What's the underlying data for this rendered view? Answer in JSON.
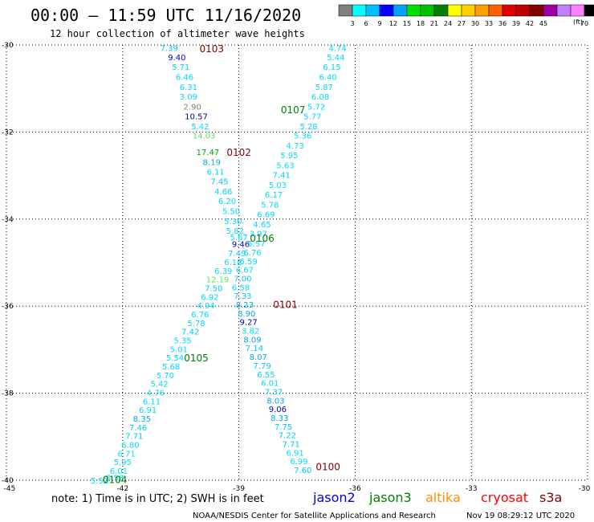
{
  "header": {
    "title": "00:00 – 11:59 UTC 11/16/2020",
    "subtitle": "12 hour collection of altimeter wave heights"
  },
  "colorbar": {
    "unit": "(ft)",
    "colors": [
      "#808080",
      "#00ffff",
      "#00c0ff",
      "#0000ff",
      "#00a0ff",
      "#00e000",
      "#00c000",
      "#008000",
      "#ffff00",
      "#ffd000",
      "#ffa000",
      "#ff6000",
      "#e00000",
      "#c00000",
      "#800000",
      "#a000a0",
      "#c080ff",
      "#ff80ff",
      "#000000"
    ],
    "labels": [
      "3",
      "6",
      "9",
      "12",
      "15",
      "18",
      "21",
      "24",
      "27",
      "30",
      "33",
      "36",
      "39",
      "42",
      "45",
      "70"
    ]
  },
  "axes": {
    "x_ticks": [
      "-45",
      "-42",
      "-39",
      "-36",
      "-33",
      "-30"
    ],
    "y_ticks": [
      "-30",
      "-32",
      "-34",
      "-36",
      "-38",
      "-40"
    ]
  },
  "chart_data": {
    "type": "scatter",
    "xlim": [
      -45,
      -30
    ],
    "ylim": [
      -40,
      -30
    ],
    "grid": true,
    "tracks": [
      {
        "label": "0103",
        "lon": -39.7,
        "lat": -30.07
      },
      {
        "label": "0102",
        "lon": -39.0,
        "lat": -32.45
      },
      {
        "label": "0107",
        "lon": -37.6,
        "lat": -31.48
      },
      {
        "label": "0106",
        "lon": -38.4,
        "lat": -34.43
      },
      {
        "label": "0101",
        "lon": -37.8,
        "lat": -35.95
      },
      {
        "label": "0105",
        "lon": -40.1,
        "lat": -37.18
      },
      {
        "label": "0104",
        "lon": -42.2,
        "lat": -39.97
      },
      {
        "label": "0100",
        "lon": -36.7,
        "lat": -39.68
      }
    ],
    "points": [
      {
        "v": "7.39",
        "lon": -40.8,
        "lat": -30.06,
        "c": "#00c8ff"
      },
      {
        "v": "9.40",
        "lon": -40.6,
        "lat": -30.28,
        "c": "#0000c0"
      },
      {
        "v": "5.71",
        "lon": -40.5,
        "lat": -30.5,
        "c": "#00d8ff"
      },
      {
        "v": "6.46",
        "lon": -40.4,
        "lat": -30.73,
        "c": "#00d8ff"
      },
      {
        "v": "6.31",
        "lon": -40.3,
        "lat": -30.96,
        "c": "#00d8ff"
      },
      {
        "v": "3.09",
        "lon": -40.3,
        "lat": -31.18,
        "c": "#00d8ff"
      },
      {
        "v": "2.90",
        "lon": -40.2,
        "lat": -31.41,
        "c": "#808080"
      },
      {
        "v": "10.57",
        "lon": -40.1,
        "lat": -31.63,
        "c": "#0000a0"
      },
      {
        "v": "5.42",
        "lon": -40.0,
        "lat": -31.86,
        "c": "#00d8ff"
      },
      {
        "v": "14.03",
        "lon": -39.9,
        "lat": -32.08,
        "c": "#60e060"
      },
      {
        "v": "17.47",
        "lon": -39.8,
        "lat": -32.45,
        "c": "#00a000"
      },
      {
        "v": "8.19",
        "lon": -39.7,
        "lat": -32.68,
        "c": "#00a8e0"
      },
      {
        "v": "6.11",
        "lon": -39.6,
        "lat": -32.91,
        "c": "#00d8ff"
      },
      {
        "v": "7.45",
        "lon": -39.5,
        "lat": -33.13,
        "c": "#00c8ff"
      },
      {
        "v": "4.66",
        "lon": -39.4,
        "lat": -33.36,
        "c": "#00d8ff"
      },
      {
        "v": "6.20",
        "lon": -39.3,
        "lat": -33.58,
        "c": "#00d8ff"
      },
      {
        "v": "5.50",
        "lon": -39.2,
        "lat": -33.81,
        "c": "#00d8ff"
      },
      {
        "v": "5.30",
        "lon": -39.15,
        "lat": -34.04,
        "c": "#00d8ff"
      },
      {
        "v": "5.82",
        "lon": -39.1,
        "lat": -34.26,
        "c": "#00d8ff"
      },
      {
        "v": "5.67",
        "lon": -39.0,
        "lat": -34.41,
        "c": "#00d8ff"
      },
      {
        "v": "9.46",
        "lon": -38.95,
        "lat": -34.57,
        "c": "#0000c0"
      },
      {
        "v": "7.49",
        "lon": -39.05,
        "lat": -34.78,
        "c": "#00c8ff"
      },
      {
        "v": "6.18",
        "lon": -39.15,
        "lat": -34.98,
        "c": "#00d8ff"
      },
      {
        "v": "6.39",
        "lon": -39.4,
        "lat": -35.18,
        "c": "#00d8ff"
      },
      {
        "v": "12.19",
        "lon": -39.55,
        "lat": -35.38,
        "c": "#60e060"
      },
      {
        "v": "7.50",
        "lon": -39.65,
        "lat": -35.58,
        "c": "#00c8ff"
      },
      {
        "v": "6.92",
        "lon": -39.75,
        "lat": -35.78,
        "c": "#00d8ff"
      },
      {
        "v": "4.94",
        "lon": -39.85,
        "lat": -35.98,
        "c": "#00d8ff"
      },
      {
        "v": "6.76",
        "lon": -40.0,
        "lat": -36.18,
        "c": "#00d8ff"
      },
      {
        "v": "5.78",
        "lon": -40.1,
        "lat": -36.38,
        "c": "#00d8ff"
      },
      {
        "v": "7.42",
        "lon": -40.25,
        "lat": -36.58,
        "c": "#00c8ff"
      },
      {
        "v": "5.35",
        "lon": -40.45,
        "lat": -36.78,
        "c": "#00d8ff"
      },
      {
        "v": "5.01",
        "lon": -40.55,
        "lat": -36.98,
        "c": "#00d8ff"
      },
      {
        "v": "5.54",
        "lon": -40.65,
        "lat": -37.18,
        "c": "#00d8ff"
      },
      {
        "v": "5.68",
        "lon": -40.75,
        "lat": -37.38,
        "c": "#00d8ff"
      },
      {
        "v": "5.70",
        "lon": -40.9,
        "lat": -37.58,
        "c": "#00d8ff"
      },
      {
        "v": "5.42",
        "lon": -41.05,
        "lat": -37.78,
        "c": "#00d8ff"
      },
      {
        "v": "4.76",
        "lon": -41.15,
        "lat": -37.98,
        "c": "#00d8ff"
      },
      {
        "v": "6.11",
        "lon": -41.25,
        "lat": -38.18,
        "c": "#00d8ff"
      },
      {
        "v": "6.91",
        "lon": -41.35,
        "lat": -38.38,
        "c": "#00d8ff"
      },
      {
        "v": "8.35",
        "lon": -41.5,
        "lat": -38.58,
        "c": "#00a8e0"
      },
      {
        "v": "7.46",
        "lon": -41.6,
        "lat": -38.78,
        "c": "#00c8ff"
      },
      {
        "v": "7.71",
        "lon": -41.7,
        "lat": -38.98,
        "c": "#00c8ff"
      },
      {
        "v": "6.80",
        "lon": -41.8,
        "lat": -39.18,
        "c": "#00d8ff"
      },
      {
        "v": "6.71",
        "lon": -41.9,
        "lat": -39.38,
        "c": "#00d8ff"
      },
      {
        "v": "5.95",
        "lon": -42.0,
        "lat": -39.58,
        "c": "#00d8ff"
      },
      {
        "v": "6.01",
        "lon": -42.1,
        "lat": -39.78,
        "c": "#00d8ff"
      },
      {
        "v": "5.58",
        "lon": -42.2,
        "lat": -39.94,
        "c": "#00d8ff"
      },
      {
        "v": "5.52",
        "lon": -42.6,
        "lat": -40.0,
        "c": "#00d8ff"
      },
      {
        "v": "4.74",
        "lon": -36.45,
        "lat": -30.06,
        "c": "#00d8ff"
      },
      {
        "v": "5.44",
        "lon": -36.5,
        "lat": -30.28,
        "c": "#00d8ff"
      },
      {
        "v": "6.15",
        "lon": -36.6,
        "lat": -30.5,
        "c": "#00d8ff"
      },
      {
        "v": "6.40",
        "lon": -36.7,
        "lat": -30.73,
        "c": "#00d8ff"
      },
      {
        "v": "5.87",
        "lon": -36.8,
        "lat": -30.96,
        "c": "#00d8ff"
      },
      {
        "v": "6.08",
        "lon": -36.9,
        "lat": -31.18,
        "c": "#00d8ff"
      },
      {
        "v": "5.72",
        "lon": -37.0,
        "lat": -31.41,
        "c": "#00d8ff"
      },
      {
        "v": "5.77",
        "lon": -37.1,
        "lat": -31.63,
        "c": "#00d8ff"
      },
      {
        "v": "5.28",
        "lon": -37.2,
        "lat": -31.86,
        "c": "#00d8ff"
      },
      {
        "v": "5.36",
        "lon": -37.35,
        "lat": -32.08,
        "c": "#00d8ff"
      },
      {
        "v": "4.73",
        "lon": -37.55,
        "lat": -32.31,
        "c": "#00d8ff"
      },
      {
        "v": "5.95",
        "lon": -37.7,
        "lat": -32.53,
        "c": "#00d8ff"
      },
      {
        "v": "5.63",
        "lon": -37.8,
        "lat": -32.76,
        "c": "#00d8ff"
      },
      {
        "v": "7.41",
        "lon": -37.9,
        "lat": -32.98,
        "c": "#00c8ff"
      },
      {
        "v": "5.03",
        "lon": -38.0,
        "lat": -33.21,
        "c": "#00d8ff"
      },
      {
        "v": "6.17",
        "lon": -38.1,
        "lat": -33.43,
        "c": "#00d8ff"
      },
      {
        "v": "5.78",
        "lon": -38.2,
        "lat": -33.66,
        "c": "#00d8ff"
      },
      {
        "v": "6.69",
        "lon": -38.3,
        "lat": -33.88,
        "c": "#00d8ff"
      },
      {
        "v": "4.65",
        "lon": -38.4,
        "lat": -34.11,
        "c": "#00d8ff"
      },
      {
        "v": "3.97",
        "lon": -38.5,
        "lat": -34.33,
        "c": "#00d8ff"
      },
      {
        "v": "5.57",
        "lon": -38.55,
        "lat": -34.56,
        "c": "#00d8ff"
      },
      {
        "v": "6.76",
        "lon": -38.65,
        "lat": -34.76,
        "c": "#00d8ff"
      },
      {
        "v": "6.59",
        "lon": -38.75,
        "lat": -34.96,
        "c": "#00d8ff"
      },
      {
        "v": "6.67",
        "lon": -38.85,
        "lat": -35.16,
        "c": "#00d8ff"
      },
      {
        "v": "7.00",
        "lon": -38.9,
        "lat": -35.36,
        "c": "#00c8ff"
      },
      {
        "v": "6.58",
        "lon": -38.95,
        "lat": -35.56,
        "c": "#00d8ff"
      },
      {
        "v": "7.33",
        "lon": -38.9,
        "lat": -35.76,
        "c": "#00c8ff"
      },
      {
        "v": "8.23",
        "lon": -38.85,
        "lat": -35.96,
        "c": "#00a8e0"
      },
      {
        "v": "8.90",
        "lon": -38.8,
        "lat": -36.16,
        "c": "#00a8e0"
      },
      {
        "v": "9.27",
        "lon": -38.75,
        "lat": -36.36,
        "c": "#0000c0"
      },
      {
        "v": "3.82",
        "lon": -38.7,
        "lat": -36.56,
        "c": "#00d8ff"
      },
      {
        "v": "8.09",
        "lon": -38.65,
        "lat": -36.76,
        "c": "#00a8e0"
      },
      {
        "v": "7.14",
        "lon": -38.6,
        "lat": -36.96,
        "c": "#00c8ff"
      },
      {
        "v": "8.07",
        "lon": -38.5,
        "lat": -37.16,
        "c": "#00a8e0"
      },
      {
        "v": "7.79",
        "lon": -38.4,
        "lat": -37.36,
        "c": "#00c8ff"
      },
      {
        "v": "6.55",
        "lon": -38.3,
        "lat": -37.56,
        "c": "#00d8ff"
      },
      {
        "v": "6.01",
        "lon": -38.2,
        "lat": -37.76,
        "c": "#00d8ff"
      },
      {
        "v": "7.37",
        "lon": -38.1,
        "lat": -37.96,
        "c": "#00c8ff"
      },
      {
        "v": "8.03",
        "lon": -38.05,
        "lat": -38.16,
        "c": "#00a8e0"
      },
      {
        "v": "9.06",
        "lon": -38.0,
        "lat": -38.36,
        "c": "#0000c0"
      },
      {
        "v": "8.33",
        "lon": -37.95,
        "lat": -38.56,
        "c": "#00a8e0"
      },
      {
        "v": "7.75",
        "lon": -37.85,
        "lat": -38.76,
        "c": "#00c8ff"
      },
      {
        "v": "7.22",
        "lon": -37.75,
        "lat": -38.96,
        "c": "#00c8ff"
      },
      {
        "v": "7.71",
        "lon": -37.65,
        "lat": -39.16,
        "c": "#00c8ff"
      },
      {
        "v": "6.91",
        "lon": -37.55,
        "lat": -39.36,
        "c": "#00d8ff"
      },
      {
        "v": "6.99",
        "lon": -37.45,
        "lat": -39.56,
        "c": "#00d8ff"
      },
      {
        "v": "7.60",
        "lon": -37.35,
        "lat": -39.76,
        "c": "#00c8ff"
      }
    ]
  },
  "footer": {
    "note": "note: 1) Time is in UTC; 2) SWH is in feet",
    "legend": [
      {
        "name": "jason2",
        "color": "#0000e0"
      },
      {
        "name": "jason3",
        "color": "#008000"
      },
      {
        "name": "altika",
        "color": "#ff9000"
      },
      {
        "name": "cryosat",
        "color": "#ff0000"
      },
      {
        "name": "s3a",
        "color": "#800000"
      }
    ],
    "credit": "NOAA/NESDIS Center for Satellite Applications and Research",
    "timestamp": "Nov 19 08:29:12 UTC 2020"
  }
}
